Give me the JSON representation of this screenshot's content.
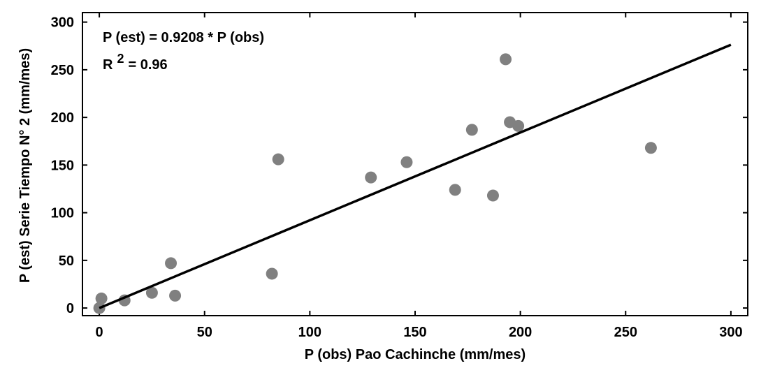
{
  "chart_data": {
    "type": "scatter",
    "xlabel": "P (obs) Pao Cachinche (mm/mes)",
    "ylabel": "P (est) Serie Tiempo N° 2 (mm/mes)",
    "xlim": [
      -8,
      308
    ],
    "ylim": [
      -8,
      310
    ],
    "xticks": [
      0,
      50,
      100,
      150,
      200,
      250,
      300
    ],
    "yticks": [
      0,
      50,
      100,
      150,
      200,
      250,
      300
    ],
    "points": [
      {
        "x": 0,
        "y": 0
      },
      {
        "x": 1,
        "y": 10
      },
      {
        "x": 12,
        "y": 8
      },
      {
        "x": 25,
        "y": 16
      },
      {
        "x": 34,
        "y": 47
      },
      {
        "x": 36,
        "y": 13
      },
      {
        "x": 82,
        "y": 36
      },
      {
        "x": 85,
        "y": 156
      },
      {
        "x": 129,
        "y": 137
      },
      {
        "x": 146,
        "y": 153
      },
      {
        "x": 169,
        "y": 124
      },
      {
        "x": 177,
        "y": 187
      },
      {
        "x": 187,
        "y": 118
      },
      {
        "x": 193,
        "y": 261
      },
      {
        "x": 195,
        "y": 195
      },
      {
        "x": 199,
        "y": 191
      },
      {
        "x": 262,
        "y": 168
      }
    ],
    "fit_line": {
      "slope": 0.9208,
      "x_range": [
        0,
        300
      ]
    },
    "equation_text": "P (est) = 0.9208 * P (obs)",
    "r2_prefix": "R",
    "r2_superscript": "2",
    "r2_suffix": "= 0.96",
    "colors": {
      "point": "#808080",
      "line": "#000000",
      "axis": "#000000"
    }
  }
}
